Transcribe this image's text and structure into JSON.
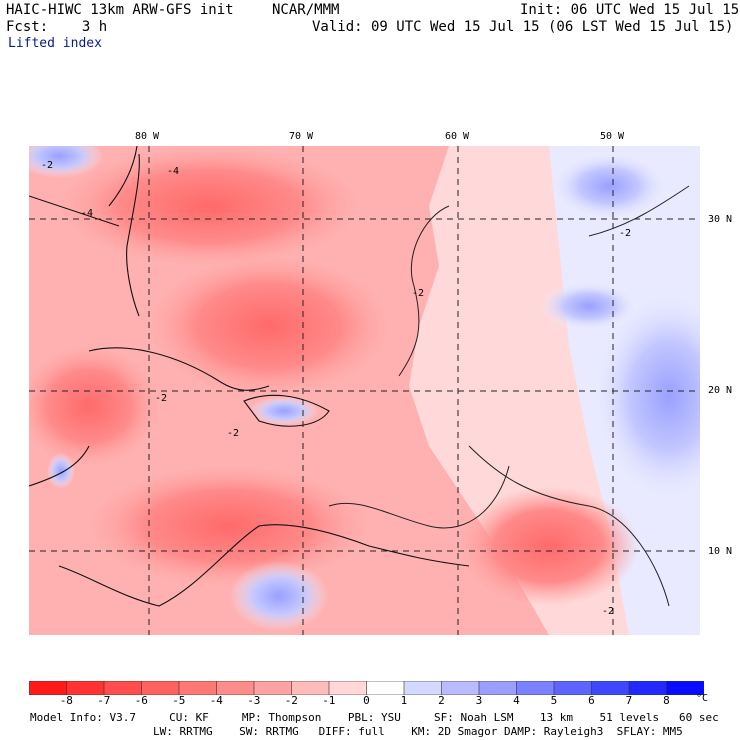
{
  "header": {
    "model": "HAIC-HIWC 13km ARW-GFS init",
    "org": "NCAR/MMM",
    "init": "Init: 06 UTC Wed 15 Jul 15",
    "fcst": "Fcst:    3 h",
    "valid": "Valid: 09 UTC Wed 15 Jul 15 (06 LST Wed 15 Jul 15)",
    "field": "Lifted index"
  },
  "axes": {
    "lon_labels": [
      "80 W",
      "70 W",
      "60 W",
      "50 W"
    ],
    "lat_labels": [
      "30 N",
      "20 N",
      "10 N"
    ]
  },
  "contour_labels": [
    "-2",
    "-4"
  ],
  "colorbar": {
    "labels": [
      "-8",
      "-7",
      "-6",
      "-5",
      "-4",
      "-3",
      "-2",
      "-1",
      "0",
      "1",
      "2",
      "3",
      "4",
      "5",
      "6",
      "7",
      "8"
    ],
    "unit": "°C",
    "colors": [
      "#ff1a1a",
      "#ff3333",
      "#ff4d4d",
      "#ff6161",
      "#ff7878",
      "#ff8c8c",
      "#ffa3a3",
      "#ffbcbc",
      "#ffd7d7",
      "#ffffff",
      "#d6d9ff",
      "#b8bcff",
      "#9a9fff",
      "#7c82ff",
      "#5e64ff",
      "#4046ff",
      "#2228ff",
      "#0a0aff"
    ]
  },
  "footer": {
    "line1": "Model Info: V3.7     CU: KF     MP: Thompson    PBL: YSU     SF: Noah LSM    13 km    51 levels   60 sec",
    "line2": "LW: RRTMG    SW: RRTMG   DIFF: full    KM: 2D Smagor DAMP: Rayleigh3  SFLAY: MM5"
  }
}
